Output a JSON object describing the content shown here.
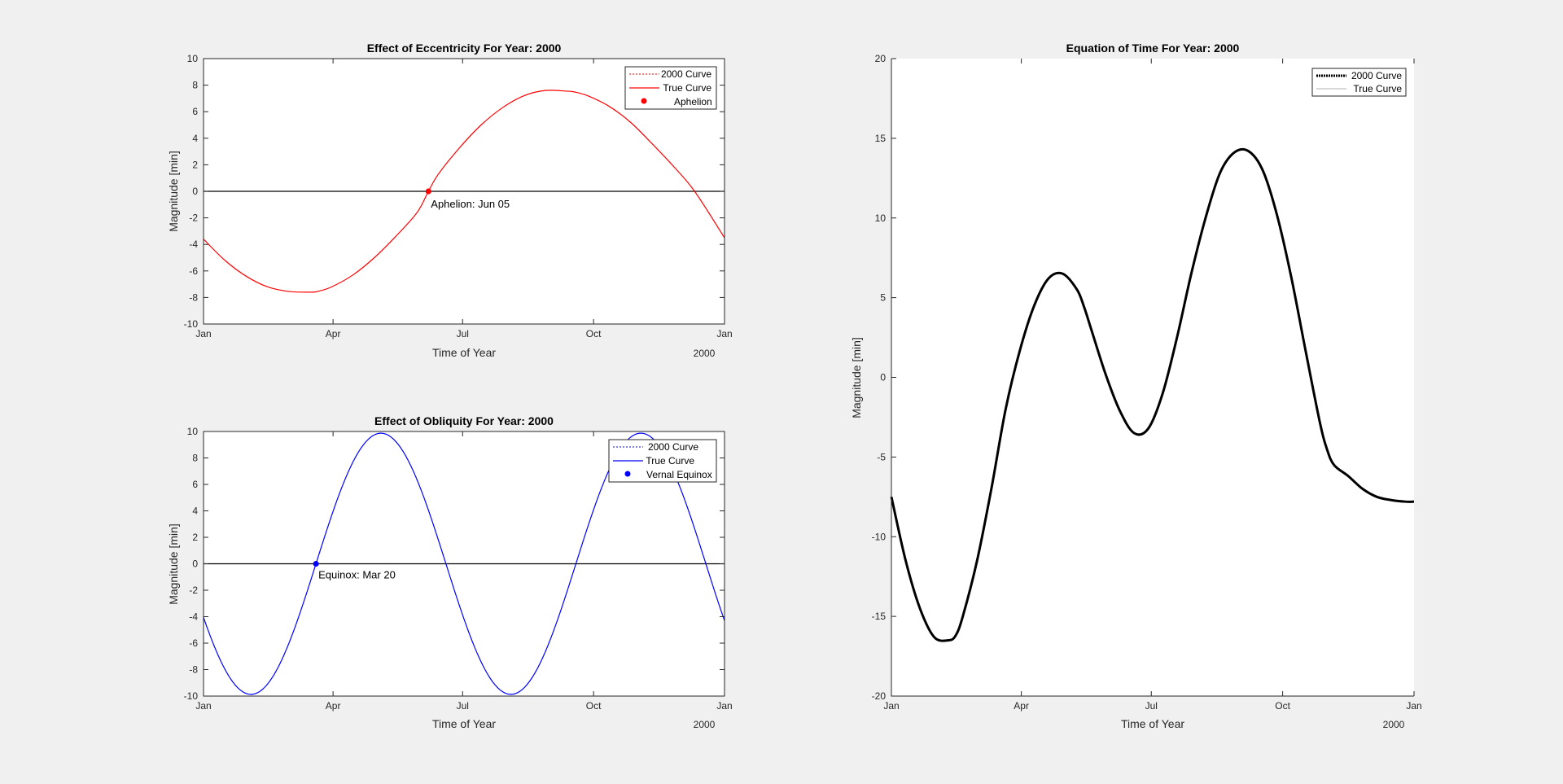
{
  "chart_data": [
    {
      "id": "eccentricity",
      "type": "line",
      "title": "Effect of Eccentricity For Year: 2000",
      "xlabel": "Time of Year",
      "ylabel": "Magnitude [min]",
      "x_year_label": "2000",
      "x_ticks": [
        "Jan",
        "Apr",
        "Jul",
        "Oct",
        "Jan"
      ],
      "x_tick_days": [
        0,
        91,
        182,
        274,
        366
      ],
      "x_range": [
        0,
        366
      ],
      "ylim": [
        -10,
        10
      ],
      "y_ticks": [
        -10,
        -8,
        -6,
        -4,
        -2,
        0,
        2,
        4,
        6,
        8,
        10
      ],
      "zero_line": true,
      "legend": {
        "placement": "top-right",
        "entries": [
          "2000 Curve",
          "True Curve",
          "Aphelion"
        ]
      },
      "series": [
        {
          "name": "True Curve",
          "color": "#ff0000",
          "x": [
            0,
            15,
            30,
            45,
            60,
            75,
            80,
            90,
            105,
            120,
            135,
            150,
            158,
            165,
            180,
            195,
            210,
            225,
            240,
            255,
            260,
            270,
            285,
            300,
            315,
            330,
            345,
            366
          ],
          "y": [
            -3.6,
            -5.2,
            -6.4,
            -7.2,
            -7.55,
            -7.6,
            -7.55,
            -7.2,
            -6.3,
            -5.0,
            -3.4,
            -1.6,
            0,
            1.3,
            3.3,
            5.0,
            6.3,
            7.2,
            7.6,
            7.55,
            7.5,
            7.2,
            6.4,
            5.2,
            3.6,
            1.9,
            0.0,
            -3.5
          ]
        }
      ],
      "marker": {
        "name": "Aphelion",
        "x": 158,
        "y": 0,
        "color": "#ff0000",
        "label": "Aphelion: Jun 05"
      }
    },
    {
      "id": "obliquity",
      "type": "line",
      "title": "Effect of Obliquity For Year: 2000",
      "xlabel": "Time of Year",
      "ylabel": "Magnitude [min]",
      "x_year_label": "2000",
      "x_ticks": [
        "Jan",
        "Apr",
        "Jul",
        "Oct",
        "Jan"
      ],
      "x_tick_days": [
        0,
        91,
        182,
        274,
        366
      ],
      "x_range": [
        0,
        366
      ],
      "ylim": [
        -10,
        10
      ],
      "y_ticks": [
        -10,
        -8,
        -6,
        -4,
        -2,
        0,
        2,
        4,
        6,
        8,
        10
      ],
      "zero_line": true,
      "legend": {
        "placement": "top-right",
        "entries": [
          "2000 Curve",
          "True Curve",
          "Vernal Equinox"
        ]
      },
      "series": [
        {
          "name": "True Curve",
          "color": "#0000ff",
          "amplitude": 9.87,
          "period_days": 182.6,
          "phase_day": 79
        }
      ],
      "marker": {
        "name": "Vernal Equinox",
        "x": 79,
        "y": 0,
        "color": "#0000ff",
        "label": "Equinox: Mar 20"
      }
    },
    {
      "id": "equation-of-time",
      "type": "line",
      "title": "Equation of Time For Year: 2000",
      "xlabel": "Time of Year",
      "ylabel": "Magnitude [min]",
      "x_year_label": "2000",
      "x_ticks": [
        "Jan",
        "Apr",
        "Jul",
        "Oct",
        "Jan"
      ],
      "x_tick_days": [
        0,
        91,
        182,
        274,
        366
      ],
      "x_range": [
        0,
        366
      ],
      "ylim": [
        -20,
        20
      ],
      "y_ticks": [
        -20,
        -15,
        -10,
        -5,
        0,
        5,
        10,
        15,
        20
      ],
      "legend": {
        "placement": "top-right",
        "entries": [
          "2000 Curve",
          "True Curve"
        ]
      },
      "series": [
        {
          "name": "2000 Curve",
          "color": "#000000",
          "x": [
            0,
            10,
            20,
            30,
            40,
            45,
            50,
            60,
            70,
            80,
            90,
            100,
            110,
            120,
            130,
            135,
            140,
            150,
            160,
            170,
            180,
            190,
            200,
            210,
            220,
            230,
            240,
            250,
            260,
            270,
            280,
            290,
            300,
            305,
            310,
            320,
            330,
            340,
            350,
            360,
            366
          ],
          "y": [
            -7.5,
            -11.5,
            -14.5,
            -16.3,
            -16.5,
            -16.2,
            -15.0,
            -11.5,
            -7.0,
            -2.0,
            1.7,
            4.5,
            6.2,
            6.5,
            5.5,
            4.4,
            3.0,
            0.2,
            -2.1,
            -3.5,
            -3.2,
            -1.0,
            2.5,
            6.5,
            10.0,
            12.8,
            14.1,
            14.2,
            13.0,
            10.2,
            6.3,
            1.7,
            -2.8,
            -4.5,
            -5.5,
            -6.2,
            -7.0,
            -7.5,
            -7.7,
            -7.8,
            -7.8
          ]
        }
      ]
    }
  ]
}
